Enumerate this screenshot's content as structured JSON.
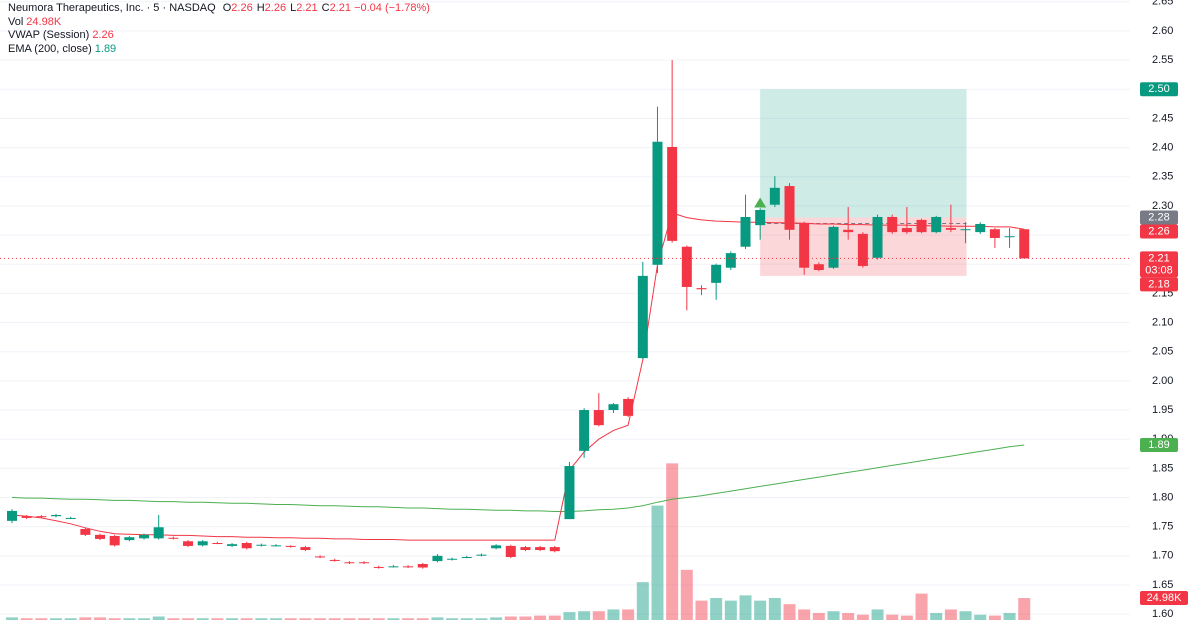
{
  "chart_data": {
    "type": "candlestick",
    "header": {
      "title": "Neumora Therapeutics, Inc. · 5 · NASDAQ",
      "ohlc": [
        {
          "label": "O",
          "value": 2.26
        },
        {
          "label": "H",
          "value": 2.26
        },
        {
          "label": "L",
          "value": 2.21
        },
        {
          "label": "C",
          "value": 2.21
        }
      ],
      "change": "−0.04 (−1.78%)"
    },
    "ylim": [
      1.59,
      2.653
    ],
    "yticks": [
      {
        "value": 1.6,
        "label": "1.60"
      },
      1.65,
      {
        "value": 1.7,
        "label": "1.70"
      },
      1.75,
      {
        "value": 1.8,
        "label": "1.80"
      },
      1.85,
      {
        "value": 1.9,
        "label": "1.90"
      },
      1.95,
      {
        "value": 2.0,
        "label": "2.00"
      },
      2.05,
      {
        "value": 2.1,
        "label": "2.10"
      },
      2.15,
      {
        "value": 2.2,
        "label": "2.20"
      },
      2.25,
      {
        "value": 2.3,
        "label": "2.30"
      },
      2.35,
      {
        "value": 2.4,
        "label": "2.40"
      },
      2.45,
      {
        "value": 2.5,
        "label": "2.50"
      },
      2.55,
      {
        "value": 2.6,
        "label": "2.60"
      },
      2.65
    ],
    "grid": true,
    "up_color": "#089981",
    "down_color": "#f23645",
    "open": [
      1.76,
      1.768,
      1.768,
      1.768,
      1.765,
      1.746,
      1.736,
      1.734,
      1.727,
      1.73,
      1.73,
      1.731,
      1.725,
      1.718,
      1.722,
      1.717,
      1.722,
      1.718,
      1.718,
      1.717,
      1.715,
      1.699,
      1.693,
      1.689,
      1.689,
      1.681,
      1.682,
      1.682,
      1.686,
      1.691,
      1.694,
      1.698,
      1.701,
      1.713,
      1.717,
      1.715,
      1.715,
      1.715,
      1.763,
      1.88,
      1.95,
      1.95,
      1.969,
      2.039,
      2.199,
      2.401,
      2.23,
      2.159,
      2.168,
      2.194,
      2.23,
      2.267,
      2.302,
      2.334,
      2.271,
      2.2,
      2.194,
      2.259,
      2.252,
      2.211,
      2.281,
      2.262,
      2.276,
      2.255,
      2.262,
      2.26,
      2.255,
      2.26,
      2.248,
      2.26
    ],
    "high": [
      1.78,
      1.77,
      1.77,
      1.772,
      1.767,
      1.748,
      1.738,
      1.736,
      1.734,
      1.738,
      1.77,
      1.733,
      1.727,
      1.727,
      1.724,
      1.722,
      1.724,
      1.721,
      1.72,
      1.718,
      1.717,
      1.701,
      1.695,
      1.691,
      1.691,
      1.683,
      1.684,
      1.684,
      1.688,
      1.703,
      1.697,
      1.7,
      1.704,
      1.72,
      1.719,
      1.717,
      1.717,
      1.717,
      1.861,
      1.953,
      1.979,
      1.962,
      1.972,
      2.204,
      2.47,
      2.55,
      2.232,
      2.164,
      2.201,
      2.222,
      2.319,
      2.296,
      2.351,
      2.339,
      2.273,
      2.203,
      2.266,
      2.298,
      2.255,
      2.285,
      2.285,
      2.298,
      2.278,
      2.283,
      2.302,
      2.272,
      2.272,
      2.262,
      2.262,
      2.26
    ],
    "low": [
      1.756,
      1.763,
      1.765,
      1.766,
      1.763,
      1.734,
      1.727,
      1.716,
      1.725,
      1.728,
      1.728,
      1.728,
      1.715,
      1.716,
      1.72,
      1.715,
      1.711,
      1.716,
      1.716,
      1.714,
      1.708,
      1.696,
      1.69,
      1.686,
      1.686,
      1.678,
      1.68,
      1.679,
      1.678,
      1.689,
      1.692,
      1.696,
      1.699,
      1.711,
      1.696,
      1.708,
      1.708,
      1.706,
      1.763,
      1.868,
      1.922,
      1.945,
      1.938,
      2.037,
      2.185,
      2.237,
      2.121,
      2.147,
      2.139,
      2.19,
      2.226,
      2.242,
      2.298,
      2.242,
      2.182,
      2.188,
      2.192,
      2.242,
      2.194,
      2.208,
      2.252,
      2.252,
      2.253,
      2.253,
      2.255,
      2.236,
      2.252,
      2.228,
      2.228,
      2.21
    ],
    "close": [
      1.777,
      1.765,
      1.767,
      1.77,
      1.765,
      1.736,
      1.729,
      1.718,
      1.732,
      1.736,
      1.749,
      1.73,
      1.717,
      1.725,
      1.721,
      1.72,
      1.713,
      1.719,
      1.718,
      1.716,
      1.71,
      1.698,
      1.692,
      1.688,
      1.688,
      1.68,
      1.682,
      1.681,
      1.68,
      1.7,
      1.695,
      1.698,
      1.702,
      1.718,
      1.698,
      1.71,
      1.71,
      1.708,
      1.854,
      1.95,
      1.924,
      1.96,
      1.94,
      2.18,
      2.41,
      2.24,
      2.161,
      2.157,
      2.199,
      2.219,
      2.281,
      2.293,
      2.331,
      2.259,
      2.194,
      2.19,
      2.264,
      2.255,
      2.197,
      2.281,
      2.255,
      2.255,
      2.255,
      2.281,
      2.259,
      2.26,
      2.269,
      2.245,
      2.248,
      2.21
    ],
    "countdown": "03:08",
    "volume": {
      "name": "Vol",
      "vlim": [
        0,
        200
      ],
      "value_label": "24.98K",
      "values": [
        3,
        2,
        2,
        2,
        2,
        3,
        3,
        2,
        2,
        2,
        4,
        2,
        2,
        2,
        2,
        2,
        2,
        2,
        2,
        2,
        2,
        2,
        2,
        2,
        2,
        2,
        2,
        2,
        2,
        3,
        2,
        2,
        2,
        3,
        4,
        4,
        5,
        5,
        9,
        10,
        10,
        12,
        12,
        43,
        130,
        178,
        57,
        22,
        25,
        22,
        28,
        22,
        25,
        18,
        12,
        8,
        10,
        8,
        6,
        12,
        6,
        5,
        30,
        8,
        12,
        10,
        6,
        5,
        8,
        24.98
      ]
    },
    "vwap": {
      "name": "VWAP (Session)",
      "color": "#f23645",
      "values": [
        1.77,
        1.768,
        1.765,
        1.76,
        1.755,
        1.748,
        1.742,
        1.738,
        1.737,
        1.736,
        1.736,
        1.735,
        1.735,
        1.734,
        1.733,
        1.733,
        1.732,
        1.732,
        1.731,
        1.731,
        1.73,
        1.73,
        1.729,
        1.729,
        1.728,
        1.728,
        1.728,
        1.727,
        1.727,
        1.727,
        1.727,
        1.727,
        1.727,
        1.727,
        1.727,
        1.727,
        1.727,
        1.727,
        1.847,
        1.878,
        1.9,
        1.915,
        1.924,
        2.036,
        2.199,
        2.288,
        2.28,
        2.276,
        2.274,
        2.273,
        2.272,
        2.272,
        2.271,
        2.271,
        2.27,
        2.269,
        2.269,
        2.268,
        2.268,
        2.267,
        2.267,
        2.267,
        2.266,
        2.266,
        2.265,
        2.265,
        2.265,
        2.264,
        2.264,
        2.26
      ]
    },
    "ema": {
      "name": "EMA (200, close)",
      "color": "#4caf50",
      "values": [
        1.8,
        1.799,
        1.799,
        1.798,
        1.797,
        1.797,
        1.796,
        1.795,
        1.795,
        1.794,
        1.793,
        1.793,
        1.792,
        1.792,
        1.791,
        1.79,
        1.79,
        1.789,
        1.788,
        1.788,
        1.787,
        1.786,
        1.786,
        1.785,
        1.784,
        1.784,
        1.783,
        1.782,
        1.782,
        1.781,
        1.78,
        1.78,
        1.779,
        1.778,
        1.778,
        1.777,
        1.777,
        1.776,
        1.776,
        1.777,
        1.779,
        1.78,
        1.782,
        1.786,
        1.792,
        1.797,
        1.8,
        1.803,
        1.807,
        1.811,
        1.815,
        1.819,
        1.823,
        1.827,
        1.831,
        1.835,
        1.839,
        1.843,
        1.847,
        1.851,
        1.855,
        1.859,
        1.863,
        1.867,
        1.871,
        1.875,
        1.879,
        1.883,
        1.887,
        1.89
      ]
    },
    "position": {
      "target": {
        "value": 2.5,
        "label": "2.50"
      },
      "entry": 2.28,
      "stop": 2.18
    }
  }
}
